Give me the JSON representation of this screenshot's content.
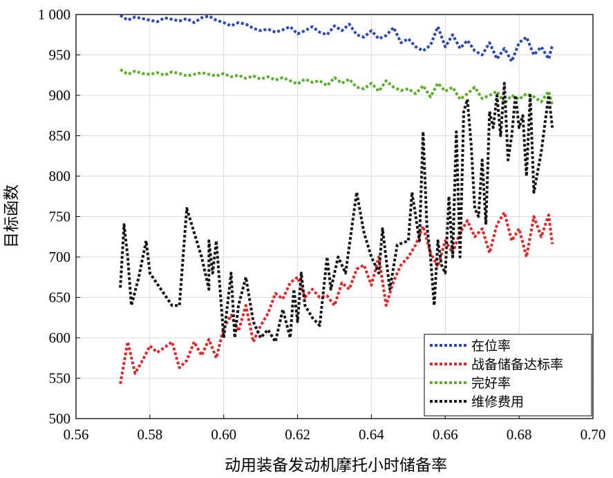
{
  "chart_data": {
    "type": "line",
    "title": "",
    "xlabel": "动用装备发动机摩托小时储备率",
    "ylabel": "目标函数",
    "xlim": [
      0.56,
      0.7
    ],
    "ylim": [
      500,
      1000
    ],
    "xticks": [
      0.56,
      0.58,
      0.6,
      0.62,
      0.64,
      0.66,
      0.68,
      0.7
    ],
    "xtick_labels": [
      "0.56",
      "0.58",
      "0.60",
      "0.62",
      "0.64",
      "0.66",
      "0.68",
      "0.70"
    ],
    "yticks": [
      500,
      550,
      600,
      650,
      700,
      750,
      800,
      850,
      900,
      950,
      1000
    ],
    "ytick_labels": [
      "500",
      "550",
      "600",
      "650",
      "700",
      "750",
      "800",
      "850",
      "900",
      "950",
      "1 000"
    ],
    "grid": true,
    "legend_position": "bottom-right",
    "series": [
      {
        "name": "在位率",
        "color": "#2948b0",
        "x": [
          0.572,
          0.574,
          0.576,
          0.578,
          0.58,
          0.582,
          0.584,
          0.586,
          0.588,
          0.59,
          0.592,
          0.594,
          0.596,
          0.598,
          0.6,
          0.602,
          0.604,
          0.606,
          0.608,
          0.61,
          0.612,
          0.614,
          0.616,
          0.618,
          0.62,
          0.622,
          0.624,
          0.626,
          0.628,
          0.63,
          0.632,
          0.634,
          0.636,
          0.638,
          0.64,
          0.642,
          0.644,
          0.646,
          0.648,
          0.65,
          0.652,
          0.654,
          0.656,
          0.658,
          0.66,
          0.662,
          0.664,
          0.666,
          0.668,
          0.67,
          0.672,
          0.674,
          0.676,
          0.678,
          0.68,
          0.682,
          0.684,
          0.686,
          0.688,
          0.689
        ],
        "values": [
          999,
          993,
          997,
          995,
          993,
          991,
          996,
          994,
          992,
          995,
          990,
          996,
          998,
          993,
          990,
          986,
          990,
          988,
          983,
          980,
          982,
          978,
          981,
          985,
          976,
          980,
          985,
          978,
          975,
          986,
          980,
          988,
          975,
          972,
          980,
          970,
          974,
          984,
          965,
          970,
          960,
          955,
          962,
          985,
          960,
          975,
          958,
          968,
          955,
          950,
          965,
          945,
          958,
          942,
          965,
          972,
          950,
          960,
          945,
          962
        ]
      },
      {
        "name": "战备储备达标率",
        "color": "#e0262a",
        "x": [
          0.572,
          0.574,
          0.576,
          0.578,
          0.58,
          0.582,
          0.584,
          0.586,
          0.588,
          0.59,
          0.592,
          0.594,
          0.596,
          0.598,
          0.6,
          0.602,
          0.604,
          0.606,
          0.608,
          0.61,
          0.612,
          0.614,
          0.616,
          0.618,
          0.62,
          0.622,
          0.624,
          0.626,
          0.628,
          0.63,
          0.632,
          0.634,
          0.636,
          0.638,
          0.64,
          0.642,
          0.644,
          0.646,
          0.648,
          0.65,
          0.652,
          0.654,
          0.656,
          0.658,
          0.66,
          0.662,
          0.664,
          0.666,
          0.668,
          0.67,
          0.672,
          0.674,
          0.676,
          0.678,
          0.68,
          0.682,
          0.684,
          0.686,
          0.688,
          0.689
        ],
        "values": [
          543,
          595,
          556,
          572,
          590,
          582,
          588,
          595,
          563,
          572,
          595,
          578,
          598,
          575,
          612,
          628,
          608,
          640,
          595,
          615,
          630,
          655,
          648,
          668,
          675,
          650,
          660,
          650,
          652,
          640,
          668,
          660,
          685,
          690,
          665,
          700,
          640,
          670,
          690,
          700,
          715,
          738,
          705,
          688,
          720,
          705,
          730,
          745,
          725,
          735,
          705,
          740,
          755,
          720,
          735,
          700,
          750,
          725,
          752,
          716
        ]
      },
      {
        "name": "完好率",
        "color": "#5aad2b",
        "x": [
          0.572,
          0.574,
          0.576,
          0.578,
          0.58,
          0.582,
          0.584,
          0.586,
          0.588,
          0.59,
          0.592,
          0.594,
          0.596,
          0.598,
          0.6,
          0.602,
          0.604,
          0.606,
          0.608,
          0.61,
          0.612,
          0.614,
          0.616,
          0.618,
          0.62,
          0.622,
          0.624,
          0.626,
          0.628,
          0.63,
          0.632,
          0.634,
          0.636,
          0.638,
          0.64,
          0.642,
          0.644,
          0.646,
          0.648,
          0.65,
          0.652,
          0.654,
          0.656,
          0.658,
          0.66,
          0.662,
          0.664,
          0.666,
          0.668,
          0.67,
          0.672,
          0.674,
          0.676,
          0.678,
          0.68,
          0.682,
          0.684,
          0.686,
          0.688,
          0.689
        ],
        "values": [
          932,
          926,
          930,
          927,
          926,
          928,
          925,
          929,
          927,
          924,
          926,
          928,
          926,
          924,
          927,
          923,
          925,
          921,
          924,
          920,
          923,
          919,
          922,
          918,
          914,
          920,
          916,
          918,
          912,
          922,
          915,
          920,
          910,
          908,
          915,
          905,
          918,
          910,
          906,
          908,
          902,
          912,
          898,
          915,
          905,
          910,
          895,
          902,
          910,
          896,
          900,
          905,
          890,
          900,
          895,
          902,
          898,
          892,
          905,
          888
        ]
      },
      {
        "name": "维修费用",
        "color": "#141414",
        "x": [
          0.572,
          0.573,
          0.574,
          0.575,
          0.577,
          0.579,
          0.58,
          0.583,
          0.586,
          0.588,
          0.589,
          0.59,
          0.592,
          0.594,
          0.596,
          0.596,
          0.597,
          0.598,
          0.599,
          0.6,
          0.602,
          0.603,
          0.604,
          0.606,
          0.608,
          0.61,
          0.612,
          0.614,
          0.616,
          0.618,
          0.619,
          0.62,
          0.621,
          0.622,
          0.624,
          0.626,
          0.628,
          0.629,
          0.631,
          0.633,
          0.636,
          0.638,
          0.64,
          0.642,
          0.643,
          0.645,
          0.647,
          0.65,
          0.651,
          0.653,
          0.654,
          0.655,
          0.656,
          0.657,
          0.658,
          0.659,
          0.66,
          0.661,
          0.662,
          0.663,
          0.664,
          0.665,
          0.666,
          0.667,
          0.668,
          0.669,
          0.67,
          0.671,
          0.672,
          0.673,
          0.674,
          0.675,
          0.676,
          0.677,
          0.678,
          0.679,
          0.68,
          0.681,
          0.682,
          0.683,
          0.684,
          0.686,
          0.688,
          0.689
        ],
        "values": [
          662,
          740,
          700,
          640,
          675,
          720,
          680,
          660,
          640,
          640,
          700,
          760,
          730,
          700,
          660,
          720,
          680,
          720,
          660,
          600,
          680,
          600,
          640,
          675,
          620,
          600,
          610,
          595,
          635,
          600,
          660,
          620,
          680,
          640,
          625,
          615,
          700,
          660,
          700,
          680,
          780,
          730,
          700,
          680,
          735,
          660,
          715,
          720,
          780,
          720,
          855,
          740,
          700,
          640,
          720,
          690,
          680,
          775,
          700,
          855,
          700,
          880,
          895,
          840,
          760,
          750,
          820,
          740,
          880,
          860,
          900,
          850,
          915,
          820,
          850,
          900,
          860,
          875,
          800,
          900,
          780,
          830,
          900,
          860
        ]
      }
    ]
  }
}
